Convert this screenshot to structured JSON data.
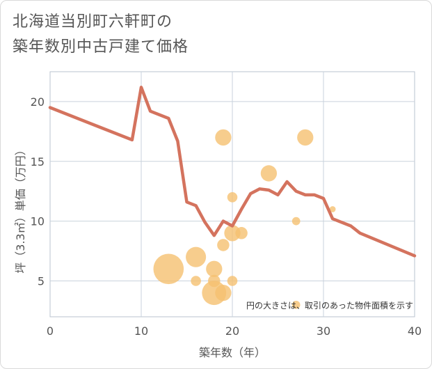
{
  "title_line1": "北海道当別町六軒町の",
  "title_line2": "築年数別中古戸建て価格",
  "chart_data": {
    "type": "line+bubble",
    "xlabel": "築年数（年）",
    "ylabel": "坪（3.3㎡）単価（万円）",
    "xlim": [
      0,
      40
    ],
    "ylim": [
      2,
      22.5
    ],
    "xticks": [
      0,
      10,
      20,
      30,
      40
    ],
    "yticks": [
      5,
      10,
      15,
      20
    ],
    "note": "円の大きさは、取引のあった物件面積を示す",
    "line_color": "#d4735e",
    "bubble_color": "#f5c170",
    "line": {
      "x": [
        0,
        9,
        10,
        11,
        13,
        14,
        15,
        16,
        17,
        18,
        19,
        20,
        21,
        22,
        23,
        24,
        25,
        26,
        27,
        28,
        29,
        30,
        31,
        33,
        34,
        40
      ],
      "y": [
        19.5,
        16.8,
        21.2,
        19.2,
        18.6,
        16.7,
        11.6,
        11.3,
        9.9,
        8.8,
        10.0,
        9.6,
        11.0,
        12.3,
        12.7,
        12.6,
        12.2,
        13.3,
        12.5,
        12.2,
        12.2,
        11.9,
        10.2,
        9.6,
        9.0,
        7.1
      ]
    },
    "bubbles": [
      {
        "x": 13,
        "y": 6.0,
        "size": 14
      },
      {
        "x": 16,
        "y": 7.0,
        "size": 9
      },
      {
        "x": 16,
        "y": 5.0,
        "size": 4
      },
      {
        "x": 18,
        "y": 6.0,
        "size": 7
      },
      {
        "x": 18,
        "y": 5.0,
        "size": 5
      },
      {
        "x": 18,
        "y": 4.0,
        "size": 11
      },
      {
        "x": 19,
        "y": 4.0,
        "size": 7
      },
      {
        "x": 19,
        "y": 8.0,
        "size": 5
      },
      {
        "x": 19,
        "y": 17.0,
        "size": 7
      },
      {
        "x": 20,
        "y": 12.0,
        "size": 4
      },
      {
        "x": 20,
        "y": 9.0,
        "size": 7
      },
      {
        "x": 20,
        "y": 5.0,
        "size": 4
      },
      {
        "x": 21,
        "y": 9.0,
        "size": 5
      },
      {
        "x": 24,
        "y": 14.0,
        "size": 7
      },
      {
        "x": 27,
        "y": 10.0,
        "size": 3
      },
      {
        "x": 27,
        "y": 3.0,
        "size": 3
      },
      {
        "x": 28,
        "y": 17.0,
        "size": 7
      },
      {
        "x": 31,
        "y": 11.0,
        "size": 2
      }
    ]
  }
}
